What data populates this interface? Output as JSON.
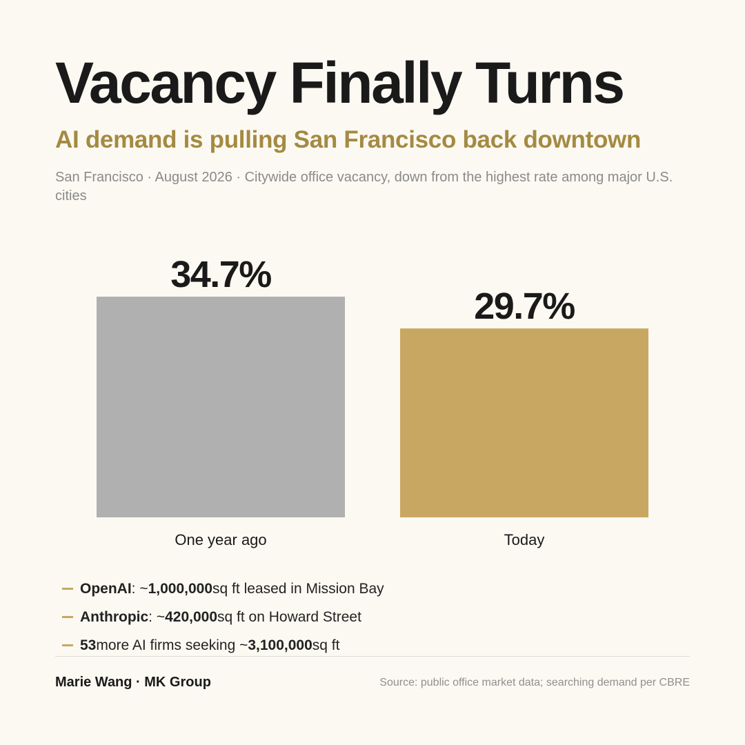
{
  "header": {
    "title": "Vacancy Finally Turns",
    "subtitle": "AI demand is pulling San Francisco back downtown",
    "caption": "San Francisco · August 2026 · Citywide office vacancy, down from the highest rate among major U.S. cities"
  },
  "chart_data": {
    "type": "bar",
    "categories": [
      "One year ago",
      "Today"
    ],
    "values": [
      34.7,
      29.7
    ],
    "value_labels": [
      "34.7%",
      "29.7%"
    ],
    "colors": [
      "#b0b0b0",
      "#c8a762"
    ],
    "title": "Vacancy Finally Turns",
    "xlabel": "",
    "ylabel": "",
    "grid": false
  },
  "bullets": [
    {
      "name": "OpenAI",
      "sep": ": ~",
      "num": "1,000,000",
      "rest": " sq ft leased in Mission Bay"
    },
    {
      "name": "Anthropic",
      "sep": ": ~",
      "num": "420,000",
      "rest": " sq ft on Howard Street"
    },
    {
      "name": "53",
      "sep": " more AI firms seeking ~",
      "num": "3,100,000",
      "rest": " sq ft"
    }
  ],
  "colors": {
    "accent": "#c8a762",
    "subtitle": "#a48a42",
    "muted_bar": "#b0b0b0",
    "background": "#fcf9f2"
  },
  "footer": {
    "author": "Marie Wang · MK Group",
    "source": "Source: public office market data; searching demand per CBRE"
  }
}
